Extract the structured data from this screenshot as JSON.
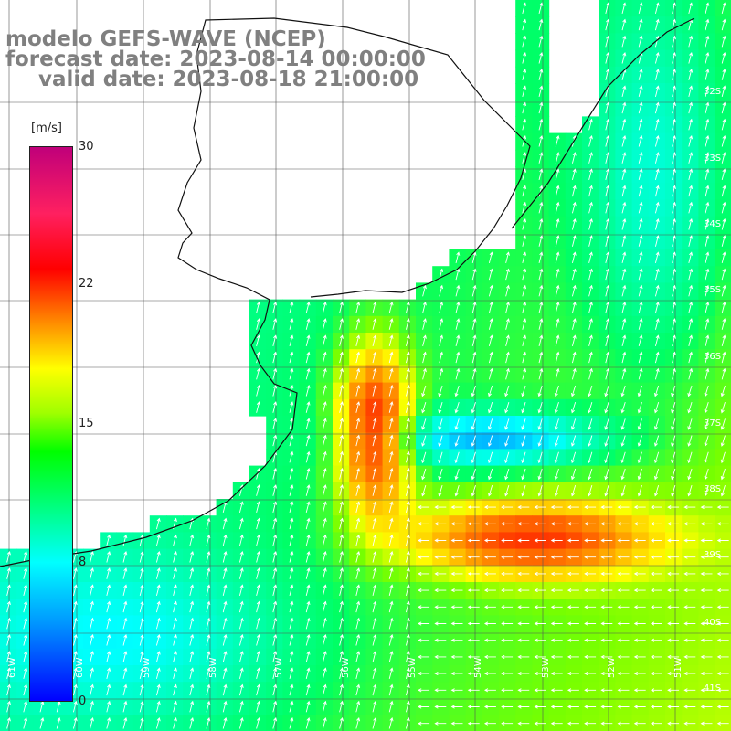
{
  "title": {
    "line1": "modelo GEFS-WAVE (NCEP)",
    "line2": "forecast date: 2023-08-14 00:00:00",
    "line3": "valid date: 2023-08-18 21:00:00"
  },
  "colorbar": {
    "unit": "[m/s]",
    "ticks": [
      "30",
      "22",
      "15",
      "8",
      "0"
    ],
    "colors": [
      "#0000ff",
      "#00a0ff",
      "#00ffff",
      "#00ff00",
      "#ffff00",
      "#ff9000",
      "#ff0000",
      "#c0007a"
    ]
  },
  "latitude_labels": [
    "32S",
    "33S",
    "34S",
    "35S",
    "36S",
    "37S",
    "38S",
    "39S",
    "40S",
    "41S"
  ],
  "longitude_labels": [
    "61W",
    "60W",
    "59W",
    "58W",
    "57W",
    "56W",
    "55W",
    "54W",
    "53W",
    "52W",
    "51W"
  ]
}
